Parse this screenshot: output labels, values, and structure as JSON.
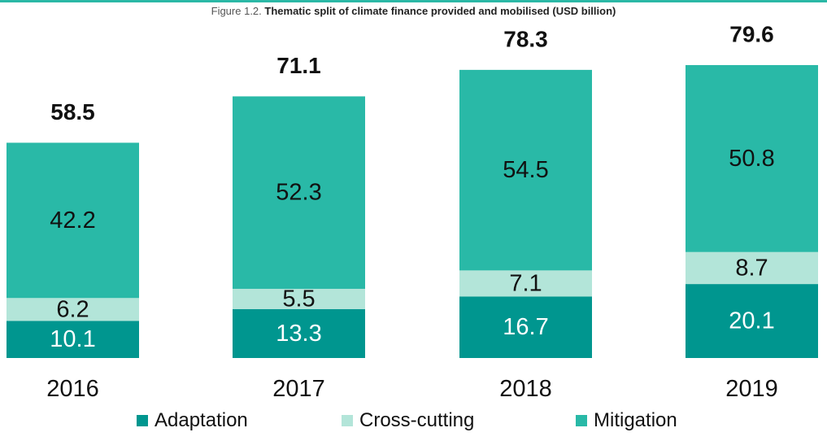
{
  "figure": {
    "number": "Figure 1.2.",
    "title": "Thematic split of climate finance provided and mobilised (USD billion)"
  },
  "colors": {
    "adaptation": "#00968f",
    "cross_cutting": "#b3e5d9",
    "mitigation": "#29b9a7",
    "top_rule": "#2bb8a6"
  },
  "chart_data": {
    "type": "bar",
    "stacked": true,
    "title": "Thematic split of climate finance provided and mobilised (USD billion)",
    "categories": [
      "2016",
      "2017",
      "2018",
      "2019"
    ],
    "series": [
      {
        "name": "Adaptation",
        "values": [
          10.1,
          13.3,
          16.7,
          20.1
        ]
      },
      {
        "name": "Cross-cutting",
        "values": [
          6.2,
          5.5,
          7.1,
          8.7
        ]
      },
      {
        "name": "Mitigation",
        "values": [
          42.2,
          52.3,
          54.5,
          50.8
        ]
      }
    ],
    "totals": [
      "58.5",
      "71.1",
      "78.3",
      "79.6"
    ],
    "xlabel": "",
    "ylabel": "",
    "ylim": [
      0,
      79.6
    ],
    "grid": false,
    "legend_position": "bottom"
  },
  "legend": [
    {
      "label": "Adaptation",
      "color": "#00968f"
    },
    {
      "label": "Cross-cutting",
      "color": "#b3e5d9"
    },
    {
      "label": "Mitigation",
      "color": "#29b9a7"
    }
  ]
}
